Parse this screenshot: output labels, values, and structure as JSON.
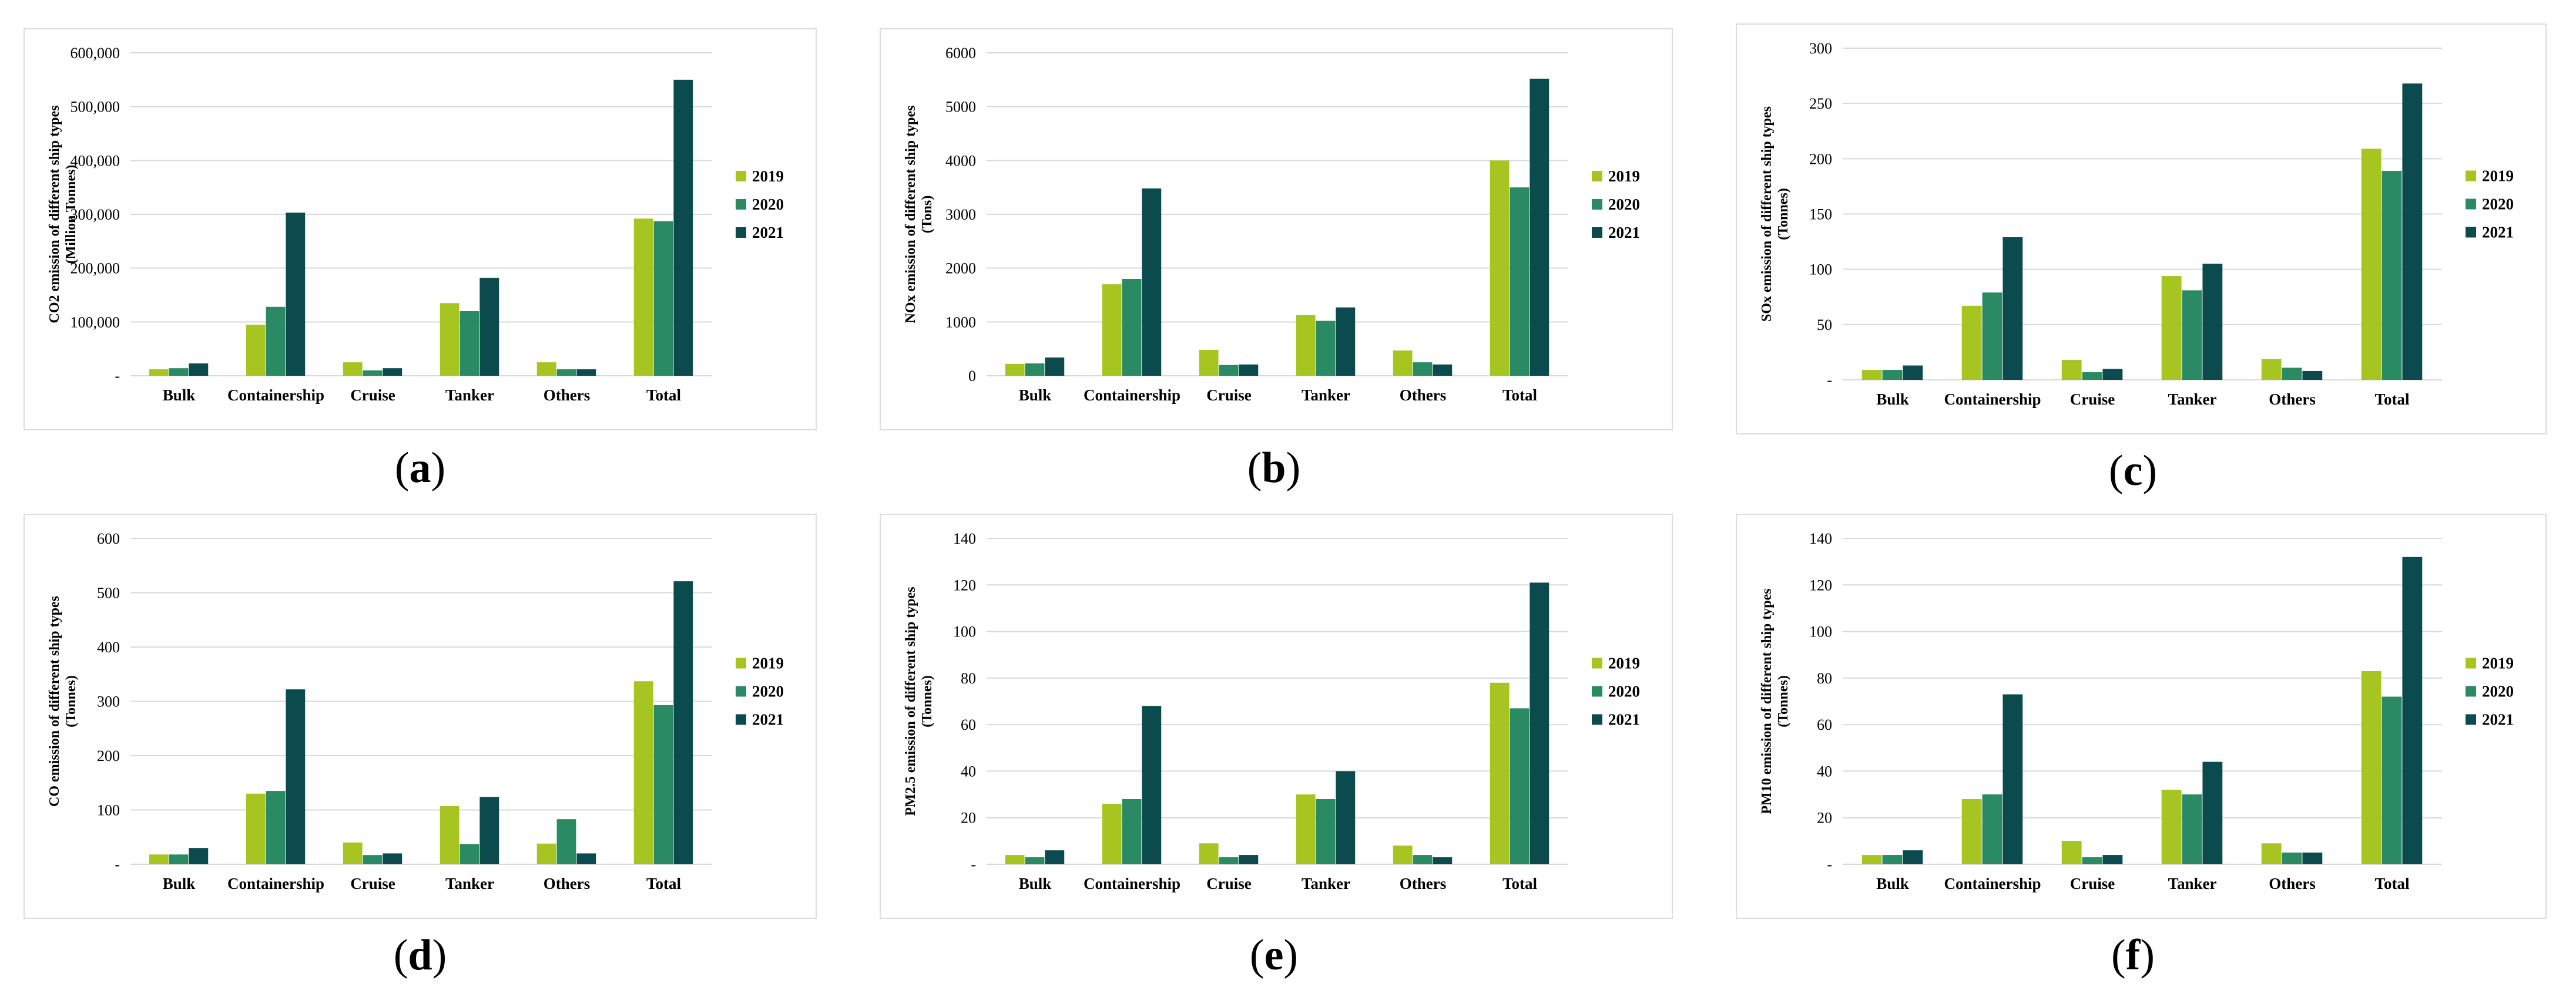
{
  "colors": {
    "s2019": "#a6c520",
    "s2020": "#2a8a63",
    "s2021": "#0b4a4d",
    "grid": "#d9d9d9"
  },
  "chart_data": [
    {
      "type": "bar",
      "label": "a",
      "ylabel_line1": "CO2 emission of different ship types",
      "ylabel_line2": "(Million Tonnes)",
      "categories": [
        "Bulk",
        "Containership",
        "Cruise",
        "Tanker",
        "Others",
        "Total"
      ],
      "ylim": [
        0,
        600000
      ],
      "yticks": [
        0,
        100000,
        200000,
        300000,
        400000,
        500000,
        600000
      ],
      "ytick_labels": [
        "-",
        "100,000",
        "200,000",
        "300,000",
        "400,000",
        "500,000",
        "600,000"
      ],
      "series": [
        {
          "name": "2019",
          "values": [
            12000,
            95000,
            25000,
            135000,
            25000,
            292000
          ]
        },
        {
          "name": "2020",
          "values": [
            14000,
            128000,
            10000,
            120000,
            12000,
            287000
          ]
        },
        {
          "name": "2021",
          "values": [
            23000,
            303000,
            14000,
            182000,
            12000,
            550000
          ]
        }
      ]
    },
    {
      "type": "bar",
      "label": "b",
      "ylabel_line1": "NOx emission of different ship types",
      "ylabel_line2": "(Tons)",
      "categories": [
        "Bulk",
        "Containership",
        "Cruise",
        "Tanker",
        "Others",
        "Total"
      ],
      "ylim": [
        0,
        6000
      ],
      "yticks": [
        0,
        1000,
        2000,
        3000,
        4000,
        5000,
        6000
      ],
      "ytick_labels": [
        "0",
        "1000",
        "2000",
        "3000",
        "4000",
        "5000",
        "6000"
      ],
      "series": [
        {
          "name": "2019",
          "values": [
            220,
            1700,
            480,
            1130,
            470,
            4000
          ]
        },
        {
          "name": "2020",
          "values": [
            230,
            1800,
            200,
            1020,
            250,
            3500
          ]
        },
        {
          "name": "2021",
          "values": [
            340,
            3480,
            210,
            1270,
            210,
            5520
          ]
        }
      ]
    },
    {
      "type": "bar",
      "label": "c",
      "ylabel_line1": "SOx emission of different ship types",
      "ylabel_line2": "(Tonnes)",
      "categories": [
        "Bulk",
        "Containership",
        "Cruise",
        "Tanker",
        "Others",
        "Total"
      ],
      "ylim": [
        0,
        300
      ],
      "yticks": [
        0,
        50,
        100,
        150,
        200,
        250,
        300
      ],
      "ytick_labels": [
        "-",
        "50",
        "100",
        "150",
        "200",
        "250",
        "300"
      ],
      "series": [
        {
          "name": "2019",
          "values": [
            9,
            67,
            18,
            94,
            19,
            209
          ]
        },
        {
          "name": "2020",
          "values": [
            9,
            79,
            7,
            81,
            11,
            189
          ]
        },
        {
          "name": "2021",
          "values": [
            13,
            129,
            10,
            105,
            8,
            268
          ]
        }
      ]
    },
    {
      "type": "bar",
      "label": "d",
      "ylabel_line1": "CO emission of different ship types",
      "ylabel_line2": "(Tonnes)",
      "categories": [
        "Bulk",
        "Containership",
        "Cruise",
        "Tanker",
        "Others",
        "Total"
      ],
      "ylim": [
        0,
        600
      ],
      "yticks": [
        0,
        100,
        200,
        300,
        400,
        500,
        600
      ],
      "ytick_labels": [
        "-",
        "100",
        "200",
        "300",
        "400",
        "500",
        "600"
      ],
      "series": [
        {
          "name": "2019",
          "values": [
            18,
            130,
            40,
            107,
            38,
            337
          ]
        },
        {
          "name": "2020",
          "values": [
            18,
            135,
            17,
            37,
            83,
            293
          ]
        },
        {
          "name": "2021",
          "values": [
            30,
            322,
            20,
            124,
            20,
            521
          ]
        }
      ]
    },
    {
      "type": "bar",
      "label": "e",
      "ylabel_line1": "PM2.5 emission of different ship types",
      "ylabel_line2": "(Tonnes)",
      "categories": [
        "Bulk",
        "Containership",
        "Cruise",
        "Tanker",
        "Others",
        "Total"
      ],
      "ylim": [
        0,
        140
      ],
      "yticks": [
        0,
        20,
        40,
        60,
        80,
        100,
        120,
        140
      ],
      "ytick_labels": [
        "-",
        "20",
        "40",
        "60",
        "80",
        "100",
        "120",
        "140"
      ],
      "series": [
        {
          "name": "2019",
          "values": [
            4,
            26,
            9,
            30,
            8,
            78
          ]
        },
        {
          "name": "2020",
          "values": [
            3,
            28,
            3,
            28,
            4,
            67
          ]
        },
        {
          "name": "2021",
          "values": [
            6,
            68,
            4,
            40,
            3,
            121
          ]
        }
      ]
    },
    {
      "type": "bar",
      "label": "f",
      "ylabel_line1": "PM10 emission of different ship types",
      "ylabel_line2": "(Tonnes)",
      "categories": [
        "Bulk",
        "Containership",
        "Cruise",
        "Tanker",
        "Others",
        "Total"
      ],
      "ylim": [
        0,
        140
      ],
      "yticks": [
        0,
        20,
        40,
        60,
        80,
        100,
        120,
        140
      ],
      "ytick_labels": [
        "-",
        "20",
        "40",
        "60",
        "80",
        "100",
        "120",
        "140"
      ],
      "series": [
        {
          "name": "2019",
          "values": [
            4,
            28,
            10,
            32,
            9,
            83
          ]
        },
        {
          "name": "2020",
          "values": [
            4,
            30,
            3,
            30,
            5,
            72
          ]
        },
        {
          "name": "2021",
          "values": [
            6,
            73,
            4,
            44,
            5,
            132
          ]
        }
      ]
    }
  ]
}
